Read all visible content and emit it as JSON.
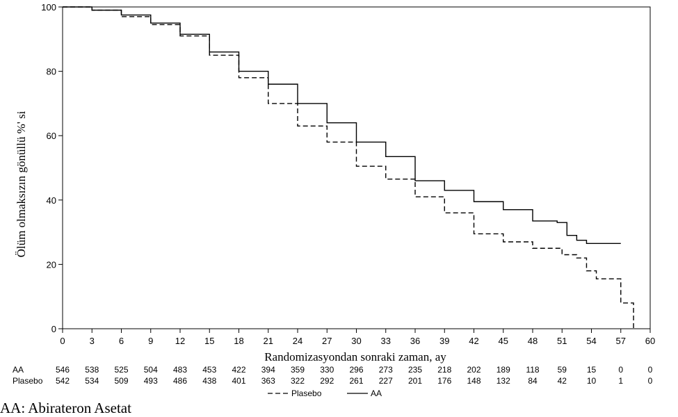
{
  "chart_data": {
    "type": "line",
    "xlabel": "Randomizasyondan sonraki zaman, ay",
    "ylabel": "Ölüm olmaksızın gönüllü %' si",
    "xlim": [
      0,
      60
    ],
    "ylim": [
      0,
      100
    ],
    "x_ticks": [
      "0",
      "3",
      "6",
      "9",
      "12",
      "15",
      "18",
      "21",
      "24",
      "27",
      "30",
      "33",
      "36",
      "39",
      "42",
      "45",
      "48",
      "51",
      "54",
      "57",
      "60"
    ],
    "y_ticks": [
      "0",
      "20",
      "40",
      "60",
      "80",
      "100"
    ],
    "grid": false,
    "legend_position": "bottom-center",
    "series": [
      {
        "name": "AA",
        "style": "solid",
        "color": "#000000",
        "points": [
          [
            0,
            100
          ],
          [
            3,
            99
          ],
          [
            6,
            97.5
          ],
          [
            9,
            95
          ],
          [
            12,
            91.5
          ],
          [
            15,
            86
          ],
          [
            18,
            80
          ],
          [
            21,
            76
          ],
          [
            24,
            70
          ],
          [
            27,
            64
          ],
          [
            30,
            58
          ],
          [
            33,
            53.5
          ],
          [
            36,
            46
          ],
          [
            39,
            43
          ],
          [
            42,
            39.5
          ],
          [
            45,
            37
          ],
          [
            48,
            33.5
          ],
          [
            50.5,
            33
          ],
          [
            51.5,
            29
          ],
          [
            52.5,
            27.5
          ],
          [
            53.5,
            26.5
          ],
          [
            57,
            26.5
          ]
        ]
      },
      {
        "name": "Plasebo",
        "style": "dashed",
        "color": "#000000",
        "points": [
          [
            0,
            100
          ],
          [
            3,
            99
          ],
          [
            6,
            97
          ],
          [
            9,
            94.5
          ],
          [
            12,
            91
          ],
          [
            15,
            85
          ],
          [
            18,
            78
          ],
          [
            21,
            70
          ],
          [
            24,
            63
          ],
          [
            27,
            58
          ],
          [
            30,
            50.5
          ],
          [
            33,
            46.5
          ],
          [
            36,
            41
          ],
          [
            39,
            36
          ],
          [
            42,
            29.5
          ],
          [
            45,
            27
          ],
          [
            48,
            25
          ],
          [
            51,
            23
          ],
          [
            52.5,
            22
          ],
          [
            53.5,
            18
          ],
          [
            54.5,
            15.5
          ],
          [
            56.5,
            15.5
          ],
          [
            57,
            8
          ],
          [
            58.3,
            8
          ],
          [
            58.3,
            0
          ]
        ]
      }
    ],
    "risk_table": {
      "times": [
        "0",
        "3",
        "6",
        "9",
        "12",
        "15",
        "18",
        "21",
        "24",
        "27",
        "30",
        "33",
        "36",
        "39",
        "42",
        "45",
        "48",
        "51",
        "54",
        "57",
        "60"
      ],
      "rows": [
        {
          "label": "AA",
          "values": [
            "546",
            "538",
            "525",
            "504",
            "483",
            "453",
            "422",
            "394",
            "359",
            "330",
            "296",
            "273",
            "235",
            "218",
            "202",
            "189",
            "118",
            "59",
            "15",
            "0",
            "0"
          ]
        },
        {
          "label": "Plasebo",
          "values": [
            "542",
            "534",
            "509",
            "493",
            "486",
            "438",
            "401",
            "363",
            "322",
            "292",
            "261",
            "227",
            "201",
            "176",
            "148",
            "132",
            "84",
            "42",
            "10",
            "1",
            "0"
          ]
        }
      ]
    }
  },
  "footnote": "AA: Abirateron Asetat"
}
